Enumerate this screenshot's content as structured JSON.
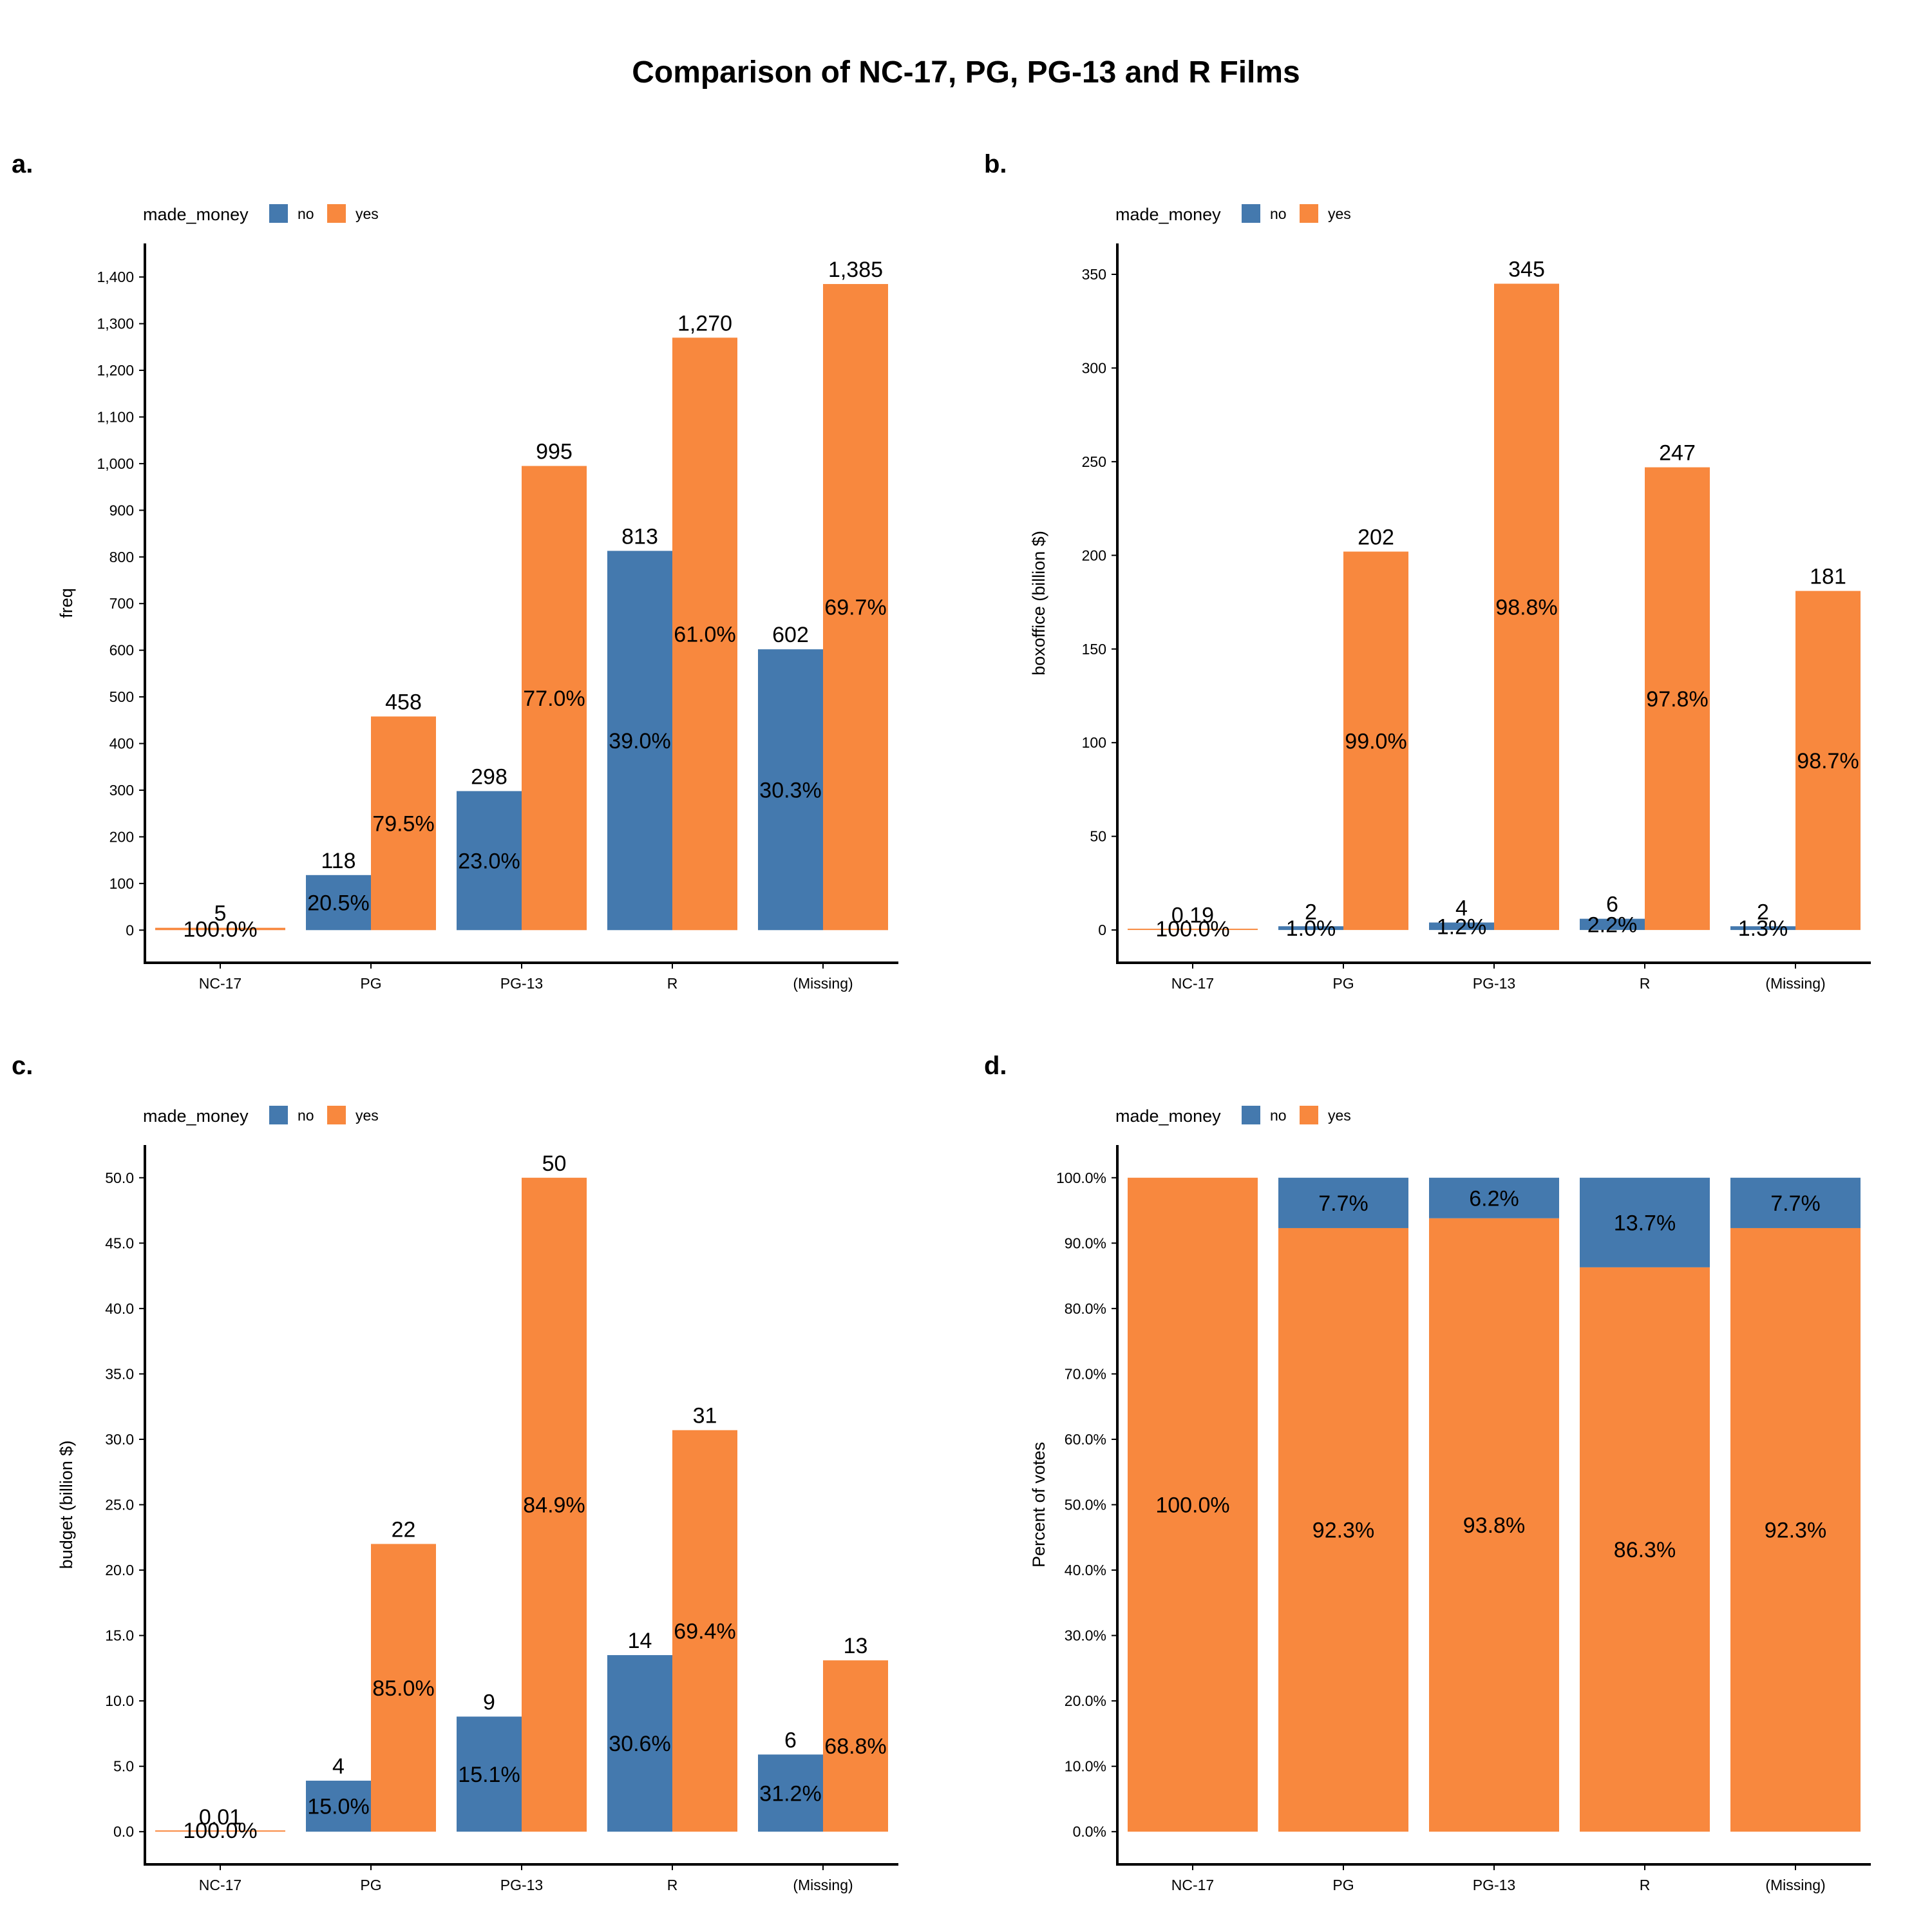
{
  "title": "Comparison of NC-17, PG, PG-13 and R Films",
  "legend": {
    "title": "made_money",
    "labels": [
      "no",
      "yes"
    ]
  },
  "colors": {
    "no": "#4479AE",
    "yes": "#F8883E"
  },
  "chart_data": [
    {
      "tag": "a.",
      "type": "bar",
      "mode": "dodge",
      "categories": [
        "NC-17",
        "PG",
        "PG-13",
        "R",
        "(Missing)"
      ],
      "ylabel": "freq",
      "ylim": [
        -70,
        1472
      ],
      "yticks": [
        0,
        100,
        200,
        300,
        400,
        500,
        600,
        700,
        800,
        900,
        1000,
        1100,
        1200,
        1300,
        1400
      ],
      "ytick_labels": [
        "0",
        "100",
        "200",
        "300",
        "400",
        "500",
        "600",
        "700",
        "800",
        "900",
        "1,000",
        "1,100",
        "1,200",
        "1,300",
        "1,400"
      ],
      "series": [
        {
          "name": "no",
          "values": [
            0,
            118,
            298,
            813,
            602
          ],
          "value_labels": [
            "",
            "118",
            "298",
            "813",
            "602"
          ],
          "pct_labels": [
            "",
            "20.5%",
            "23.0%",
            "39.0%",
            "30.3%"
          ]
        },
        {
          "name": "yes",
          "values": [
            5,
            458,
            995,
            1270,
            1385
          ],
          "value_labels": [
            "5",
            "458",
            "995",
            "1,270",
            "1,385"
          ],
          "pct_labels": [
            "100.0%",
            "79.5%",
            "77.0%",
            "61.0%",
            "69.7%"
          ]
        }
      ]
    },
    {
      "tag": "b.",
      "type": "bar",
      "mode": "dodge",
      "categories": [
        "NC-17",
        "PG",
        "PG-13",
        "R",
        "(Missing)"
      ],
      "ylabel": "boxoffice (billion $)",
      "ylim": [
        -17.5,
        366.5
      ],
      "yticks": [
        0,
        50,
        100,
        150,
        200,
        250,
        300,
        350
      ],
      "ytick_labels": [
        "0",
        "50",
        "100",
        "150",
        "200",
        "250",
        "300",
        "350"
      ],
      "series": [
        {
          "name": "no",
          "values": [
            0,
            2,
            4,
            6,
            2
          ],
          "value_labels": [
            "",
            "2",
            "4",
            "6",
            "2"
          ],
          "pct_labels": [
            "",
            "1.0%",
            "1.2%",
            "2.2%",
            "1.3%"
          ]
        },
        {
          "name": "yes",
          "values": [
            0.19,
            202,
            345,
            247,
            181
          ],
          "value_labels": [
            "0.19",
            "202",
            "345",
            "247",
            "181"
          ],
          "pct_labels": [
            "100.0%",
            "99.0%",
            "98.8%",
            "97.8%",
            "98.7%"
          ]
        }
      ]
    },
    {
      "tag": "c.",
      "type": "bar",
      "mode": "dodge",
      "categories": [
        "NC-17",
        "PG",
        "PG-13",
        "R",
        "(Missing)"
      ],
      "ylabel": "budget (billion $)",
      "ylim": [
        -2.5,
        52.5
      ],
      "yticks": [
        0,
        5,
        10,
        15,
        20,
        25,
        30,
        35,
        40,
        45,
        50
      ],
      "ytick_labels": [
        "0.0",
        "5.0",
        "10.0",
        "15.0",
        "20.0",
        "25.0",
        "30.0",
        "35.0",
        "40.0",
        "45.0",
        "50.0"
      ],
      "series": [
        {
          "name": "no",
          "values": [
            0,
            3.9,
            8.8,
            13.5,
            5.9
          ],
          "value_labels": [
            "",
            "4",
            "9",
            "14",
            "6"
          ],
          "pct_labels": [
            "",
            "15.0%",
            "15.1%",
            "30.6%",
            "31.2%"
          ]
        },
        {
          "name": "yes",
          "values": [
            0.01,
            22,
            50,
            30.7,
            13.1
          ],
          "value_labels": [
            "0.01",
            "22",
            "50",
            "31",
            "13"
          ],
          "pct_labels": [
            "100.0%",
            "85.0%",
            "84.9%",
            "69.4%",
            "68.8%"
          ]
        }
      ]
    },
    {
      "tag": "d.",
      "type": "bar",
      "mode": "stack",
      "categories": [
        "NC-17",
        "PG",
        "PG-13",
        "R",
        "(Missing)"
      ],
      "ylabel": "Percent of votes",
      "ylim": [
        -5,
        105
      ],
      "yticks": [
        0,
        10,
        20,
        30,
        40,
        50,
        60,
        70,
        80,
        90,
        100
      ],
      "ytick_labels": [
        "0.0%",
        "10.0%",
        "20.0%",
        "30.0%",
        "40.0%",
        "50.0%",
        "60.0%",
        "70.0%",
        "80.0%",
        "90.0%",
        "100.0%"
      ],
      "series": [
        {
          "name": "no",
          "values": [
            0,
            7.7,
            6.2,
            13.7,
            7.7
          ],
          "value_labels": [
            "",
            "",
            "",
            "",
            ""
          ],
          "pct_labels": [
            "",
            "7.7%",
            "6.2%",
            "13.7%",
            "7.7%"
          ]
        },
        {
          "name": "yes",
          "values": [
            100,
            92.3,
            93.8,
            86.3,
            92.3
          ],
          "value_labels": [
            "",
            "",
            "",
            "",
            ""
          ],
          "pct_labels": [
            "100.0%",
            "92.3%",
            "93.8%",
            "86.3%",
            "92.3%"
          ]
        }
      ]
    }
  ]
}
